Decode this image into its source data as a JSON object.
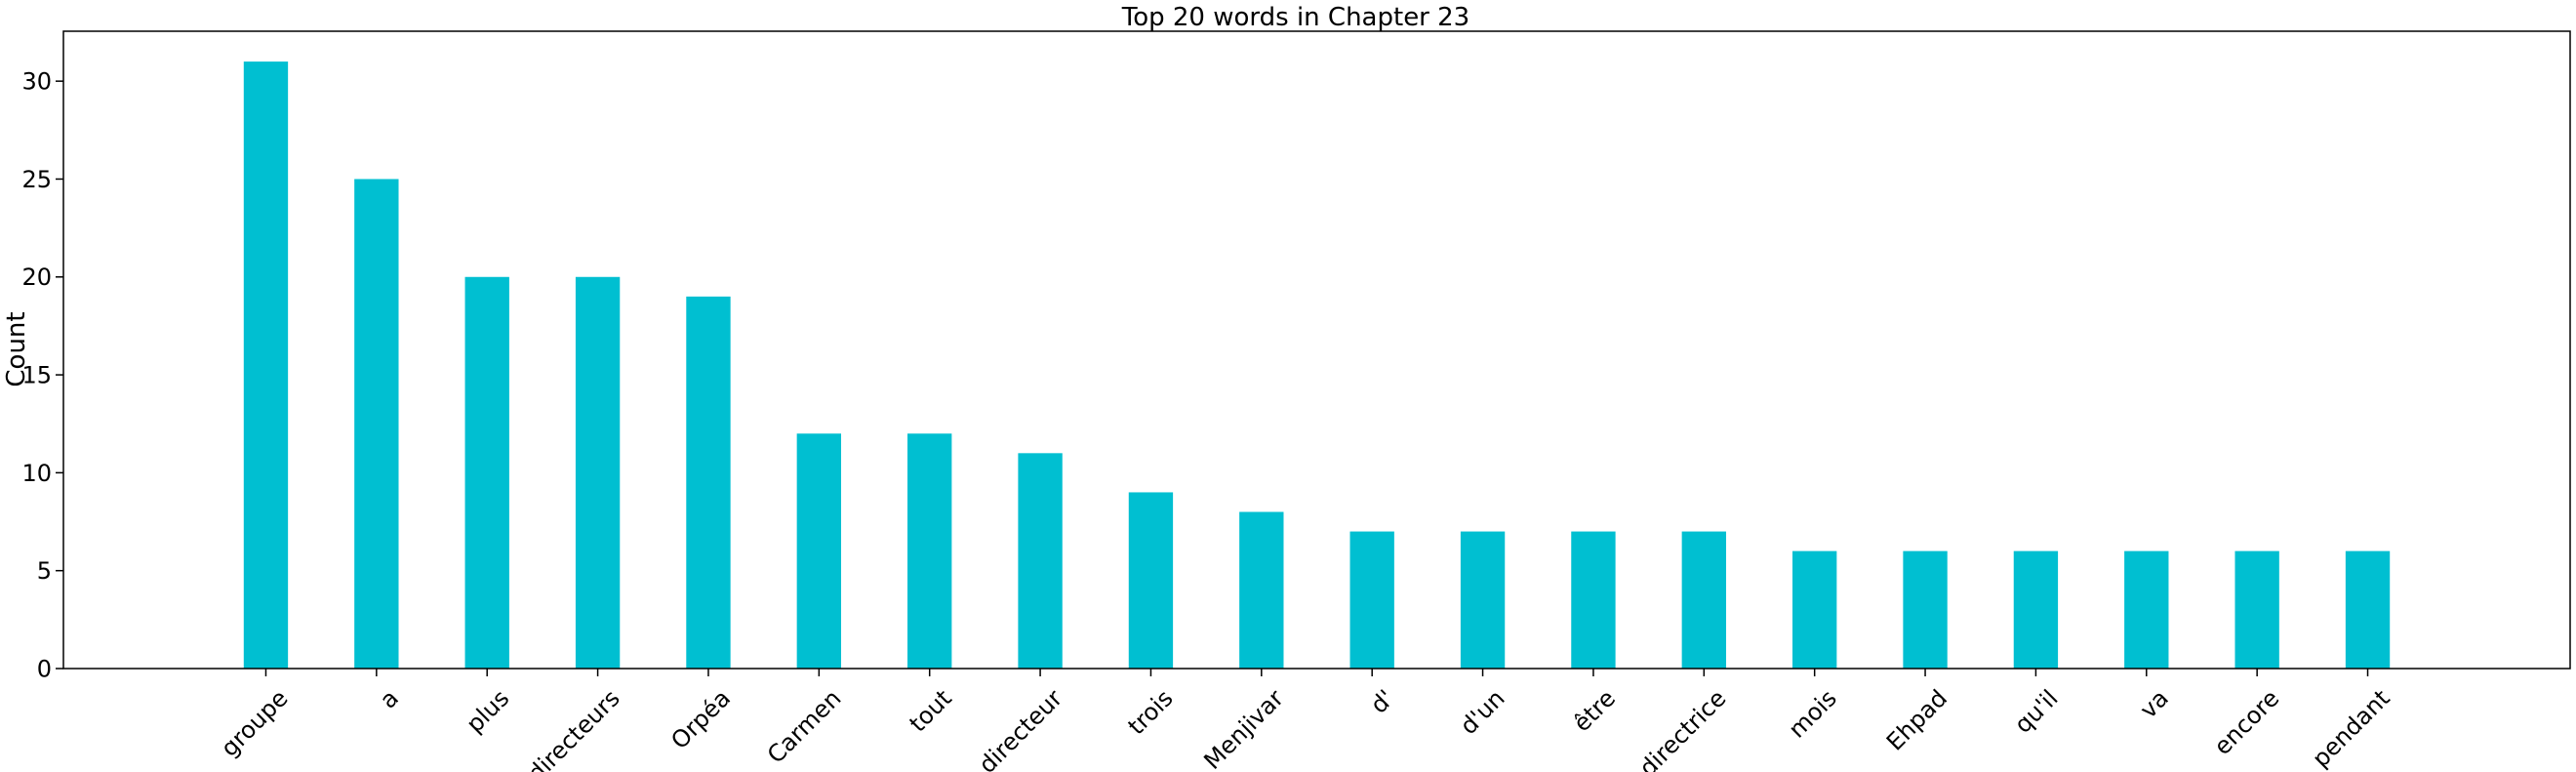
{
  "chart_data": {
    "type": "bar",
    "title": "Top 20 words in Chapter 23",
    "xlabel": "",
    "ylabel": "Count",
    "categories": [
      "groupe",
      "a",
      "plus",
      "directeurs",
      "Orpéa",
      "Carmen",
      "tout",
      "directeur",
      "trois",
      "Menjivar",
      "d'",
      "d'un",
      "être",
      "directrice",
      "mois",
      "Ehpad",
      "qu'il",
      "va",
      "encore",
      "pendant"
    ],
    "values": [
      31,
      25,
      20,
      20,
      19,
      12,
      12,
      11,
      9,
      8,
      7,
      7,
      7,
      7,
      6,
      6,
      6,
      6,
      6,
      6
    ],
    "ylim": [
      0,
      32.55
    ],
    "yticks": [
      0,
      5,
      10,
      15,
      20,
      25,
      30
    ],
    "grid": false,
    "bar_color": "#00bfd1",
    "x_tick_rotation_deg": 45
  }
}
